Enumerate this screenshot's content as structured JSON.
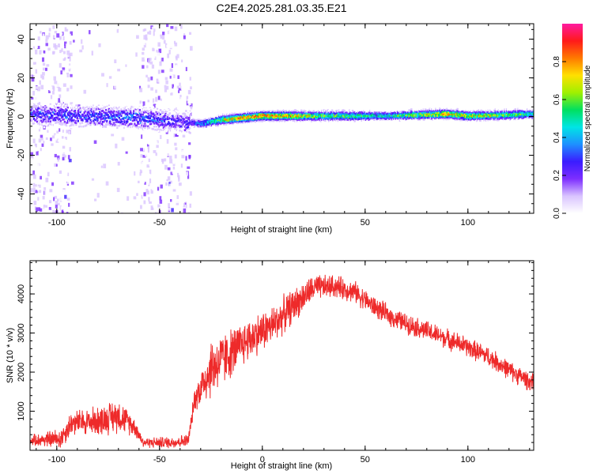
{
  "title": "C2E4.2025.281.03.35.E21",
  "chart_data": [
    {
      "type": "heatmap",
      "name": "spectrogram",
      "xlabel": "Height of straight line (km)",
      "ylabel": "Frequency (Hz)",
      "xlim": [
        -113,
        132
      ],
      "ylim": [
        -50,
        48
      ],
      "xticks": [
        -100,
        -50,
        0,
        50,
        100
      ],
      "xtick_labels": [
        "-100",
        "-50",
        "",
        "50",
        "100"
      ],
      "yticks": [
        -40,
        -20,
        0,
        20,
        40
      ],
      "ytick_labels": [
        "-40",
        "-20",
        "0",
        "20",
        "40"
      ],
      "colorbar": {
        "label": "Normalized spectral amplitude",
        "range": [
          0,
          1
        ],
        "ticks": [
          0.0,
          0.2,
          0.4,
          0.6,
          0.8
        ],
        "tick_labels": [
          "0.0",
          "0.2",
          "0.4",
          "0.6",
          "0.8"
        ],
        "colormap": [
          "#ffffff",
          "#d9c4ff",
          "#7d2eff",
          "#3a1cff",
          "#1e90ff",
          "#00e5e5",
          "#00e060",
          "#a0f000",
          "#ffe000",
          "#ff7a00",
          "#ff1a1a",
          "#ff1aa0"
        ]
      },
      "ridge": [
        {
          "x": -113,
          "f": 2
        },
        {
          "x": -90,
          "f": 1
        },
        {
          "x": -60,
          "f": 0
        },
        {
          "x": -40,
          "f": -2
        },
        {
          "x": -30,
          "f": -3
        },
        {
          "x": -20,
          "f": -1
        },
        {
          "x": -10,
          "f": 0
        },
        {
          "x": 0,
          "f": 1
        },
        {
          "x": 30,
          "f": 1
        },
        {
          "x": 60,
          "f": 1
        },
        {
          "x": 90,
          "f": 2
        },
        {
          "x": 100,
          "f": 1
        },
        {
          "x": 132,
          "f": 2
        }
      ],
      "ridge_amplitude": [
        {
          "x": -113,
          "a": 0.35
        },
        {
          "x": -60,
          "a": 0.4
        },
        {
          "x": -35,
          "a": 0.3
        },
        {
          "x": -20,
          "a": 0.7
        },
        {
          "x": -10,
          "a": 0.9
        },
        {
          "x": 0,
          "a": 0.95
        },
        {
          "x": 30,
          "a": 0.7
        },
        {
          "x": 60,
          "a": 0.55
        },
        {
          "x": 90,
          "a": 0.85
        },
        {
          "x": 132,
          "a": 0.6
        }
      ],
      "noise_bands": [
        {
          "from": -113,
          "to": -93,
          "density": 0.55
        },
        {
          "from": -93,
          "to": -60,
          "density": 0.05
        },
        {
          "from": -60,
          "to": -35,
          "density": 0.45
        }
      ]
    },
    {
      "type": "line",
      "name": "snr",
      "xlabel": "Height of straight line (km)",
      "ylabel": "SNR (10 * v/v)",
      "xlim": [
        -113,
        132
      ],
      "ylim": [
        0,
        4850
      ],
      "xticks": [
        -100,
        -50,
        0,
        50,
        100
      ],
      "xtick_labels": [
        "-100",
        "-50",
        "0",
        "50",
        "100"
      ],
      "yticks": [
        1000,
        2000,
        3000,
        4000
      ],
      "ytick_labels": [
        "1000",
        "2000",
        "3000",
        "4000"
      ],
      "color": "#ee2a2a",
      "trend": [
        {
          "x": -113,
          "y": 250
        },
        {
          "x": -98,
          "y": 300
        },
        {
          "x": -93,
          "y": 700
        },
        {
          "x": -80,
          "y": 750
        },
        {
          "x": -70,
          "y": 900
        },
        {
          "x": -62,
          "y": 600
        },
        {
          "x": -58,
          "y": 200
        },
        {
          "x": -45,
          "y": 200
        },
        {
          "x": -36,
          "y": 250
        },
        {
          "x": -33,
          "y": 1300
        },
        {
          "x": -25,
          "y": 2100
        },
        {
          "x": -15,
          "y": 2500
        },
        {
          "x": -5,
          "y": 2900
        },
        {
          "x": 5,
          "y": 3200
        },
        {
          "x": 15,
          "y": 3700
        },
        {
          "x": 25,
          "y": 4150
        },
        {
          "x": 35,
          "y": 4200
        },
        {
          "x": 45,
          "y": 4050
        },
        {
          "x": 55,
          "y": 3650
        },
        {
          "x": 65,
          "y": 3350
        },
        {
          "x": 80,
          "y": 3050
        },
        {
          "x": 95,
          "y": 2750
        },
        {
          "x": 110,
          "y": 2400
        },
        {
          "x": 120,
          "y": 2050
        },
        {
          "x": 132,
          "y": 1700
        }
      ],
      "noise_amplitude": [
        {
          "x": -113,
          "a": 150
        },
        {
          "x": -95,
          "a": 350
        },
        {
          "x": -70,
          "a": 500
        },
        {
          "x": -58,
          "a": 150
        },
        {
          "x": -35,
          "a": 200
        },
        {
          "x": -25,
          "a": 900
        },
        {
          "x": -10,
          "a": 650
        },
        {
          "x": 10,
          "a": 550
        },
        {
          "x": 30,
          "a": 350
        },
        {
          "x": 60,
          "a": 300
        },
        {
          "x": 100,
          "a": 300
        },
        {
          "x": 132,
          "a": 280
        }
      ]
    }
  ]
}
